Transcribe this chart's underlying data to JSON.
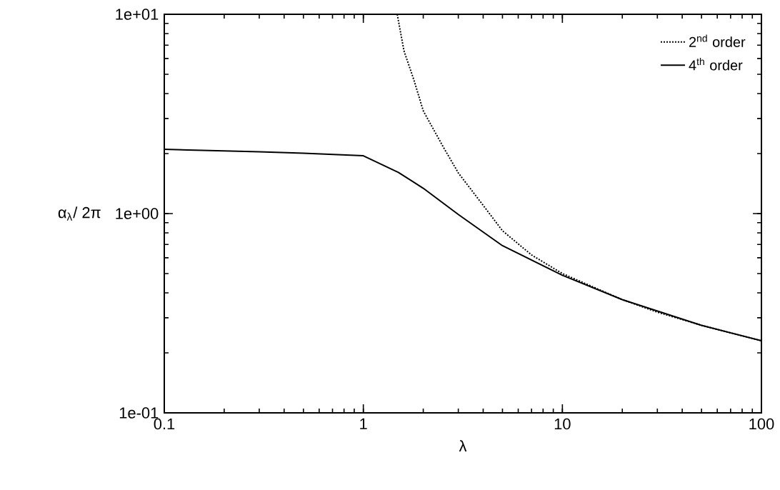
{
  "chart_data": {
    "type": "line",
    "xlabel": "λ",
    "ylabel": "α$_{λ}$/ 2π",
    "log": "xy",
    "xlim": [
      0.1,
      100
    ],
    "ylim": [
      0.1,
      10
    ],
    "xticks": [
      0.1,
      1,
      10,
      100
    ],
    "yticks": [
      {
        "value": 0.1,
        "label": "1e-01"
      },
      {
        "value": 1,
        "label": "1e+00"
      },
      {
        "value": 10,
        "label": "1e+01"
      }
    ],
    "legend": "top right",
    "grid": false,
    "series": [
      {
        "name": "2$^{nd}$ order",
        "color": "#000000",
        "line_style": "dotted",
        "x": [
          1.48,
          1.6,
          1.8,
          2,
          2.5,
          3,
          4,
          5,
          7,
          10,
          20,
          30,
          50,
          100
        ],
        "values": [
          10,
          6.56,
          4.64,
          3.28,
          2.19,
          1.6,
          1.1,
          0.82,
          0.62,
          0.5,
          0.37,
          0.32,
          0.275,
          0.23
        ]
      },
      {
        "name": "4$^{th}$ order",
        "color": "#000000",
        "line_style": "solid",
        "x": [
          0.1,
          0.3,
          0.5,
          1,
          1.5,
          2,
          3,
          5,
          10,
          20,
          50,
          100
        ],
        "values": [
          2.1,
          2.04,
          2.01,
          1.95,
          1.61,
          1.34,
          0.99,
          0.69,
          0.49,
          0.37,
          0.275,
          0.23
        ]
      }
    ]
  }
}
